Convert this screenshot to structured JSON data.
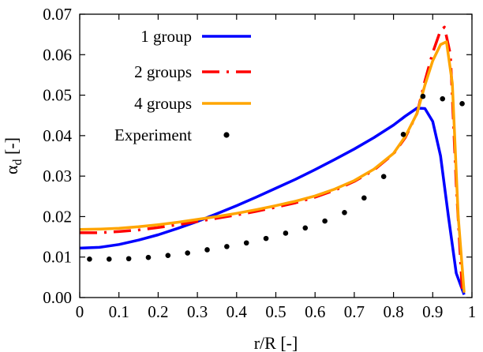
{
  "chart_data": {
    "type": "line",
    "xlabel": "r/R [-]",
    "ylabel": "α",
    "ylabel_sub": "d",
    "ylabel_unit": " [-]",
    "xlim": [
      0,
      1
    ],
    "ylim": [
      0,
      0.07
    ],
    "xticks": [
      0,
      0.1,
      0.2,
      0.3,
      0.4,
      0.5,
      0.6,
      0.7,
      0.8,
      0.9,
      1
    ],
    "xtick_labels": [
      "0",
      "0.1",
      "0.2",
      "0.3",
      "0.4",
      "0.5",
      "0.6",
      "0.7",
      "0.8",
      "0.9",
      "1"
    ],
    "yticks": [
      0,
      0.01,
      0.02,
      0.03,
      0.04,
      0.05,
      0.06,
      0.07
    ],
    "ytick_labels": [
      "0.00",
      "0.01",
      "0.02",
      "0.03",
      "0.04",
      "0.05",
      "0.06",
      "0.07"
    ],
    "grid": false,
    "legend_position": "top-left",
    "series": [
      {
        "name": "1 group",
        "color": "#0000ff",
        "style": "solid",
        "x": [
          0.0,
          0.05,
          0.1,
          0.15,
          0.2,
          0.25,
          0.3,
          0.35,
          0.4,
          0.45,
          0.5,
          0.55,
          0.6,
          0.65,
          0.7,
          0.75,
          0.8,
          0.83,
          0.86,
          0.88,
          0.9,
          0.92,
          0.94,
          0.96,
          0.98
        ],
        "y": [
          0.0122,
          0.0124,
          0.0131,
          0.0142,
          0.0155,
          0.0171,
          0.0188,
          0.0207,
          0.0227,
          0.0248,
          0.027,
          0.0292,
          0.0316,
          0.0341,
          0.0367,
          0.0395,
          0.0426,
          0.0448,
          0.0468,
          0.0467,
          0.0435,
          0.035,
          0.02,
          0.006,
          0.0007
        ]
      },
      {
        "name": "2 groups",
        "color": "#ff0000",
        "style": "dashdot",
        "x": [
          0.0,
          0.05,
          0.1,
          0.15,
          0.2,
          0.25,
          0.3,
          0.35,
          0.4,
          0.45,
          0.5,
          0.55,
          0.6,
          0.65,
          0.7,
          0.75,
          0.8,
          0.83,
          0.86,
          0.88,
          0.9,
          0.92,
          0.93,
          0.945,
          0.96,
          0.975
        ],
        "y": [
          0.016,
          0.016,
          0.0163,
          0.0167,
          0.0173,
          0.018,
          0.0188,
          0.0196,
          0.0204,
          0.0213,
          0.0223,
          0.0234,
          0.0248,
          0.0265,
          0.0287,
          0.0315,
          0.0355,
          0.0395,
          0.0455,
          0.0535,
          0.0605,
          0.066,
          0.0668,
          0.06,
          0.028,
          0.002
        ]
      },
      {
        "name": "4 groups",
        "color": "#ffa500",
        "style": "solid",
        "x": [
          0.0,
          0.05,
          0.1,
          0.15,
          0.2,
          0.25,
          0.3,
          0.35,
          0.4,
          0.45,
          0.5,
          0.55,
          0.6,
          0.65,
          0.7,
          0.75,
          0.8,
          0.83,
          0.86,
          0.88,
          0.9,
          0.92,
          0.935,
          0.95,
          0.965,
          0.98
        ],
        "y": [
          0.0168,
          0.0169,
          0.0171,
          0.0175,
          0.018,
          0.0186,
          0.0193,
          0.02,
          0.0208,
          0.0217,
          0.0227,
          0.0238,
          0.0251,
          0.0268,
          0.0289,
          0.0317,
          0.0356,
          0.0398,
          0.0455,
          0.0525,
          0.0585,
          0.0625,
          0.0632,
          0.053,
          0.02,
          0.0012
        ]
      },
      {
        "name": "Experiment",
        "color": "#000000",
        "style": "points",
        "x": [
          0.025,
          0.075,
          0.125,
          0.175,
          0.225,
          0.275,
          0.325,
          0.375,
          0.425,
          0.475,
          0.525,
          0.575,
          0.625,
          0.675,
          0.725,
          0.775,
          0.825,
          0.875,
          0.925,
          0.975
        ],
        "y": [
          0.0095,
          0.0095,
          0.0096,
          0.0099,
          0.0104,
          0.011,
          0.0118,
          0.0126,
          0.0135,
          0.0146,
          0.0159,
          0.0172,
          0.0189,
          0.021,
          0.0246,
          0.0299,
          0.0403,
          0.0497,
          0.0491,
          0.0479
        ]
      }
    ]
  }
}
